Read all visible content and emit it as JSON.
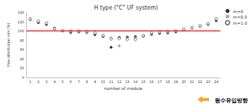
{
  "chart_data": {
    "type": "scatter",
    "title": "H type (\"C\" UF system)",
    "x_label": "number of module",
    "y_label": "Flow distribution rate [%]",
    "categories": [
      "1",
      "2",
      "3",
      "4",
      "5",
      "6",
      "7",
      "8",
      "9",
      "10",
      "11",
      "12",
      "13",
      "14",
      "15",
      "16",
      "17",
      "18",
      "19",
      "20",
      "21",
      "22",
      "23",
      "24"
    ],
    "series": [
      {
        "name": "m=0",
        "color": "#000000",
        "marker": "circle",
        "values": [
          125,
          118,
          114,
          106,
          100,
          97,
          98,
          97,
          92,
          88,
          65,
          86,
          87,
          88,
          89,
          93,
          95,
          96,
          98,
          102,
          106,
          110,
          114,
          122
        ]
      },
      {
        "name": "m=0.5",
        "color": "#999999",
        "marker": "circle",
        "values": [
          124,
          120,
          116,
          104,
          100,
          99,
          99,
          98,
          95,
          90,
          85,
          68,
          85,
          86,
          88,
          95,
          97,
          98,
          100,
          103,
          106,
          110,
          115,
          124
        ]
      },
      {
        "name": "m=1.0",
        "color": "#555555",
        "marker": "open_circle",
        "values": [
          126,
          121,
          117,
          105,
          101,
          100,
          100,
          99,
          96,
          90,
          83,
          84,
          82,
          82,
          90,
          96,
          98,
          99,
          100,
          104,
          107,
          111,
          116,
          126
        ]
      }
    ],
    "reference_line": {
      "value": 100,
      "color": "#e8262b"
    },
    "ylim": [
      0,
      140
    ],
    "yticks": [
      0,
      20,
      40,
      60,
      80,
      100,
      120,
      140
    ],
    "grid": false,
    "legend": "right",
    "annotations": [
      {
        "text": "원수유입방향"
      }
    ]
  }
}
